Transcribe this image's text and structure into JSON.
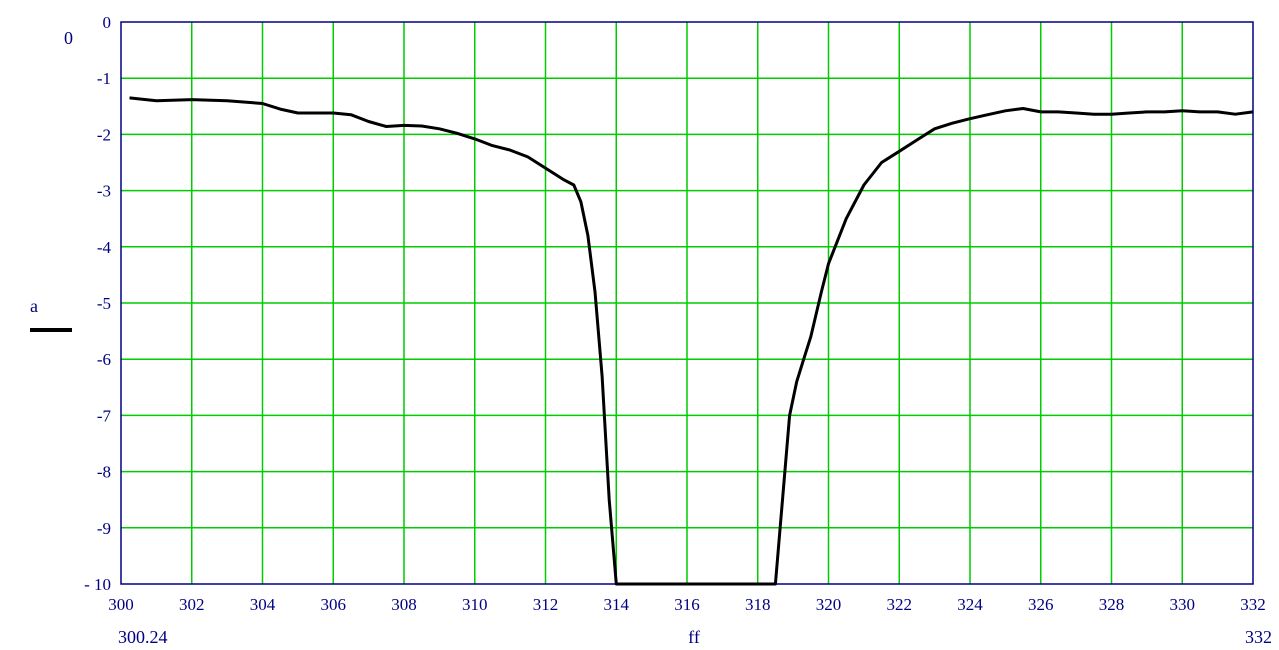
{
  "chart_data": {
    "type": "line",
    "title": "",
    "xlabel": "ff",
    "ylabel": "a",
    "xlim": [
      300,
      332
    ],
    "ylim": [
      -10,
      0
    ],
    "x_ticks": [
      300,
      302,
      304,
      306,
      308,
      310,
      312,
      314,
      316,
      318,
      320,
      322,
      324,
      326,
      328,
      330,
      332
    ],
    "y_ticks": [
      0,
      -1,
      -2,
      -3,
      -4,
      -5,
      -6,
      -7,
      -8,
      -9,
      -10
    ],
    "y_tick_labels": [
      "0",
      "-1",
      "-2",
      "-3",
      "-4",
      "-5",
      "-6",
      "-7",
      "-8",
      "-9",
      "- 10"
    ],
    "ymax_label": "0",
    "x_range_labels": {
      "min": "300.24",
      "max": "332"
    },
    "grid": true,
    "colors": {
      "grid": "#00cc00",
      "line": "#000000",
      "axis": "#000080",
      "frame": "#000080"
    },
    "series": [
      {
        "name": "a",
        "x": [
          300.24,
          301,
          302,
          303,
          304,
          304.5,
          305,
          306,
          306.5,
          307,
          307.5,
          308,
          308.5,
          309,
          309.5,
          310,
          310.5,
          311,
          311.5,
          312,
          312.5,
          312.8,
          313.0,
          313.2,
          313.4,
          313.6,
          313.8,
          314.0,
          314.2,
          314.5,
          315,
          316,
          317,
          318,
          318.5,
          318.7,
          318.9,
          319.1,
          319.3,
          319.5,
          319.8,
          320,
          320.5,
          321,
          321.5,
          322,
          322.5,
          323,
          323.5,
          324,
          324.5,
          325,
          325.5,
          326,
          326.5,
          327,
          327.5,
          328,
          328.5,
          329,
          329.5,
          330,
          330.5,
          331,
          331.5,
          332
        ],
        "y": [
          -1.35,
          -1.4,
          -1.38,
          -1.4,
          -1.45,
          -1.55,
          -1.62,
          -1.62,
          -1.65,
          -1.77,
          -1.86,
          -1.84,
          -1.85,
          -1.9,
          -1.98,
          -2.08,
          -2.2,
          -2.28,
          -2.4,
          -2.6,
          -2.8,
          -2.9,
          -3.2,
          -3.8,
          -4.8,
          -6.3,
          -8.5,
          -10,
          -10,
          -10,
          -10,
          -10,
          -10,
          -10,
          -10,
          -8.5,
          -7.0,
          -6.4,
          -6.0,
          -5.6,
          -4.8,
          -4.3,
          -3.5,
          -2.9,
          -2.5,
          -2.3,
          -2.1,
          -1.9,
          -1.8,
          -1.72,
          -1.65,
          -1.58,
          -1.54,
          -1.6,
          -1.6,
          -1.62,
          -1.64,
          -1.64,
          -1.62,
          -1.6,
          -1.6,
          -1.58,
          -1.6,
          -1.6,
          -1.64,
          -1.6
        ]
      }
    ]
  }
}
